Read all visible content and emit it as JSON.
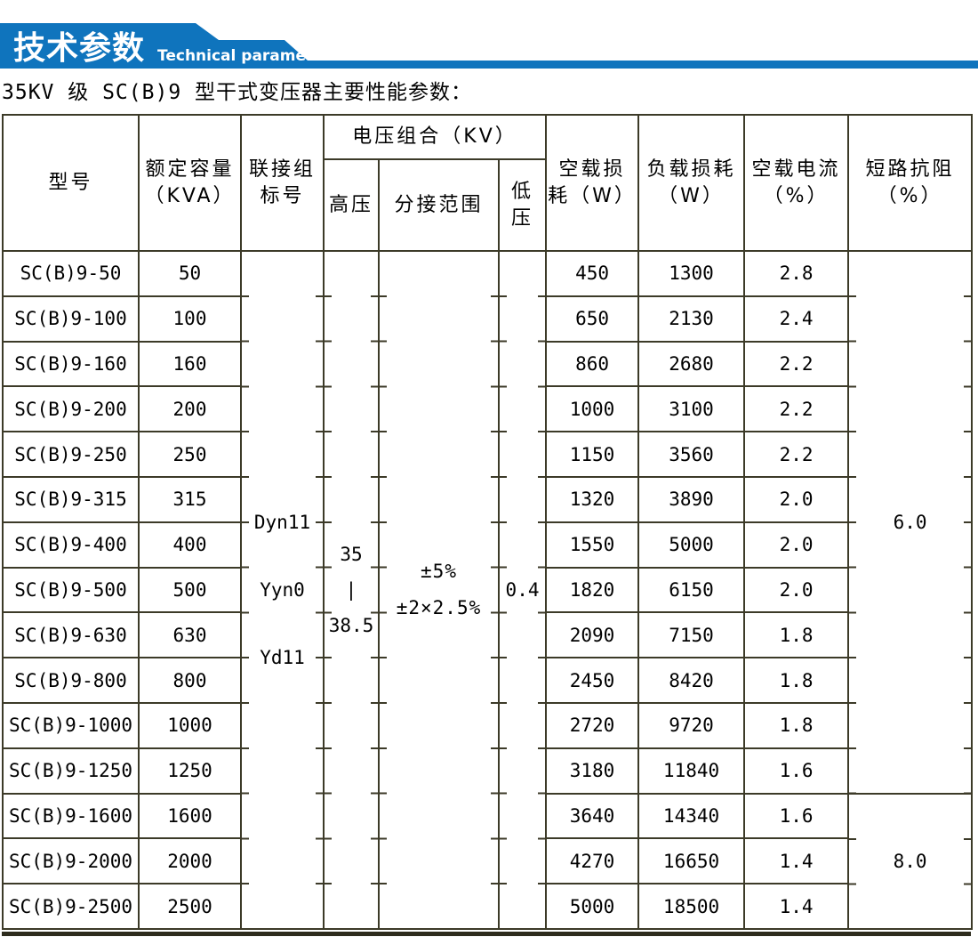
{
  "banner": {
    "title_cn": "技术参数",
    "title_en": "Technical parameter",
    "blue": "#0f74bd"
  },
  "caption": "35KV 级 SC(B)9 型干式变压器主要性能参数：",
  "table": {
    "border_color": "#3c3a28",
    "headers": {
      "model": "型号",
      "capacity_l1": "额定容量",
      "capacity_l2": "（KVA）",
      "vector_l1": "联接组",
      "vector_l2": "标号",
      "voltage_group": "电压组合（KV）",
      "hv": "高压",
      "tap": "分接范围",
      "lv_l1": "低",
      "lv_l2": "压",
      "noload_l1": "空载损",
      "noload_l2": "耗（W）",
      "load_l1": "负载损耗",
      "load_l2": "（W）",
      "current_l1": "空载电流",
      "current_l2": "（%）",
      "impedance_l1": "短路抗阻",
      "impedance_l2": "（%）"
    },
    "merged": {
      "vector_lines": [
        "Dyn11",
        "Yyn0",
        "Yd11"
      ],
      "hv_lines": [
        "35",
        "|",
        "38.5"
      ],
      "tap_lines": [
        "±5%",
        "±2×2.5%"
      ],
      "lv": "0.4",
      "impedance_top": "6.0",
      "impedance_bottom": "8.0"
    },
    "rows": [
      {
        "model": "SC(B)9-50",
        "kva": "50",
        "noload": "450",
        "load": "1300",
        "current": "2.8"
      },
      {
        "model": "SC(B)9-100",
        "kva": "100",
        "noload": "650",
        "load": "2130",
        "current": "2.4"
      },
      {
        "model": "SC(B)9-160",
        "kva": "160",
        "noload": "860",
        "load": "2680",
        "current": "2.2"
      },
      {
        "model": "SC(B)9-200",
        "kva": "200",
        "noload": "1000",
        "load": "3100",
        "current": "2.2"
      },
      {
        "model": "SC(B)9-250",
        "kva": "250",
        "noload": "1150",
        "load": "3560",
        "current": "2.2"
      },
      {
        "model": "SC(B)9-315",
        "kva": "315",
        "noload": "1320",
        "load": "3890",
        "current": "2.0"
      },
      {
        "model": "SC(B)9-400",
        "kva": "400",
        "noload": "1550",
        "load": "5000",
        "current": "2.0"
      },
      {
        "model": "SC(B)9-500",
        "kva": "500",
        "noload": "1820",
        "load": "6150",
        "current": "2.0"
      },
      {
        "model": "SC(B)9-630",
        "kva": "630",
        "noload": "2090",
        "load": "7150",
        "current": "1.8"
      },
      {
        "model": "SC(B)9-800",
        "kva": "800",
        "noload": "2450",
        "load": "8420",
        "current": "1.8"
      },
      {
        "model": "SC(B)9-1000",
        "kva": "1000",
        "noload": "2720",
        "load": "9720",
        "current": "1.8"
      },
      {
        "model": "SC(B)9-1250",
        "kva": "1250",
        "noload": "3180",
        "load": "11840",
        "current": "1.6"
      },
      {
        "model": "SC(B)9-1600",
        "kva": "1600",
        "noload": "3640",
        "load": "14340",
        "current": "1.6"
      },
      {
        "model": "SC(B)9-2000",
        "kva": "2000",
        "noload": "4270",
        "load": "16650",
        "current": "1.4"
      },
      {
        "model": "SC(B)9-2500",
        "kva": "2500",
        "noload": "5000",
        "load": "18500",
        "current": "1.4"
      }
    ],
    "impedance_top_rowspan": 12,
    "impedance_bottom_rowspan": 3
  }
}
